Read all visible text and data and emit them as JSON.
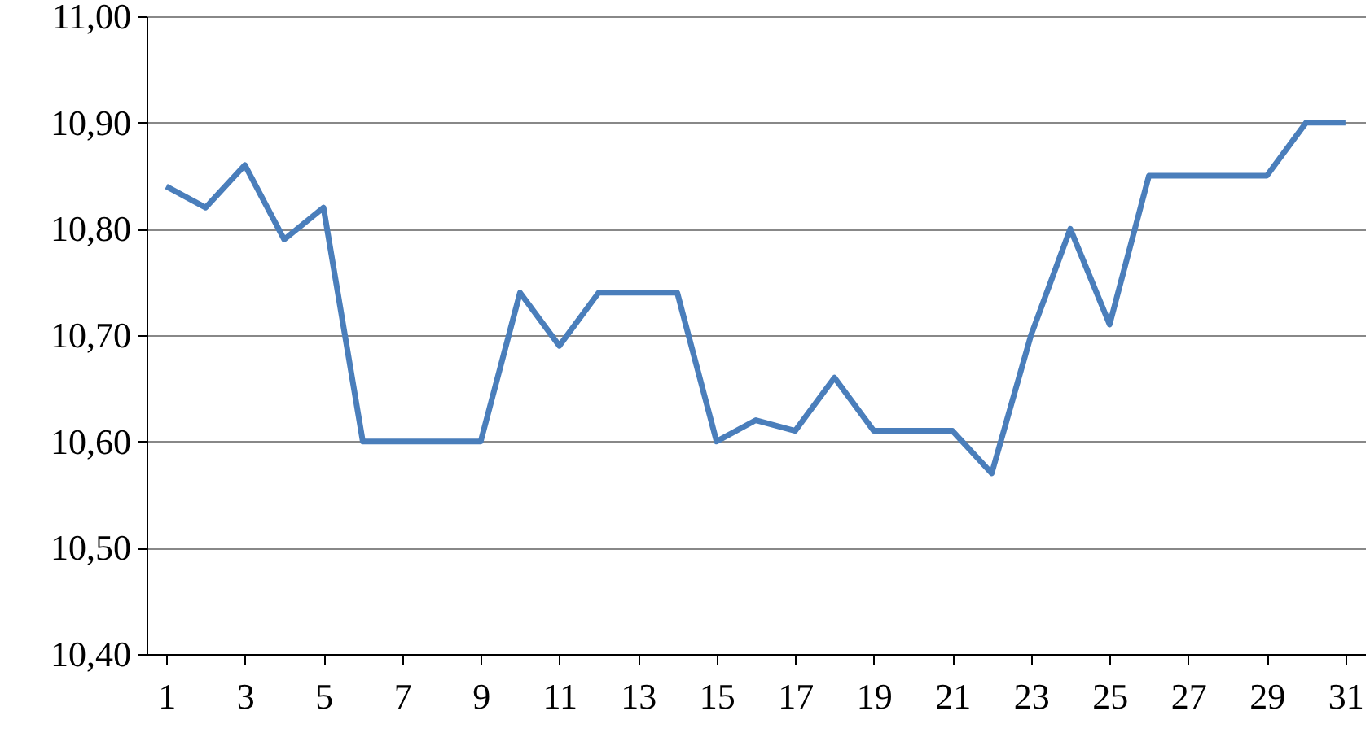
{
  "chart_data": {
    "type": "line",
    "x": [
      1,
      2,
      3,
      4,
      5,
      6,
      7,
      8,
      9,
      10,
      11,
      12,
      13,
      14,
      15,
      16,
      17,
      18,
      19,
      20,
      21,
      22,
      23,
      24,
      25,
      26,
      27,
      28,
      29,
      30,
      31
    ],
    "series": [
      {
        "color": "#4a7ebb",
        "values": [
          10.84,
          10.82,
          10.86,
          10.79,
          10.82,
          10.6,
          10.6,
          10.6,
          10.6,
          10.74,
          10.69,
          10.74,
          10.74,
          10.74,
          10.6,
          10.62,
          10.61,
          10.66,
          10.61,
          10.61,
          10.61,
          10.57,
          10.7,
          10.8,
          10.71,
          10.85,
          10.85,
          10.85,
          10.85,
          10.9,
          10.9
        ]
      }
    ],
    "xlim": [
      0.5,
      31.5
    ],
    "xticks": [
      1,
      3,
      5,
      7,
      9,
      11,
      13,
      15,
      17,
      19,
      21,
      23,
      25,
      27,
      29,
      31
    ],
    "ylim": [
      10.4,
      11.0
    ],
    "yticks": [
      {
        "value": 10.4,
        "label": "10,40"
      },
      {
        "value": 10.5,
        "label": "10,50"
      },
      {
        "value": 10.6,
        "label": "10,60"
      },
      {
        "value": 10.7,
        "label": "10,70"
      },
      {
        "value": 10.8,
        "label": "10,80"
      },
      {
        "value": 10.9,
        "label": "10,90"
      },
      {
        "value": 11.0,
        "label": "11,00"
      }
    ],
    "grid": "y",
    "marker": "none",
    "line_style": "solid"
  }
}
